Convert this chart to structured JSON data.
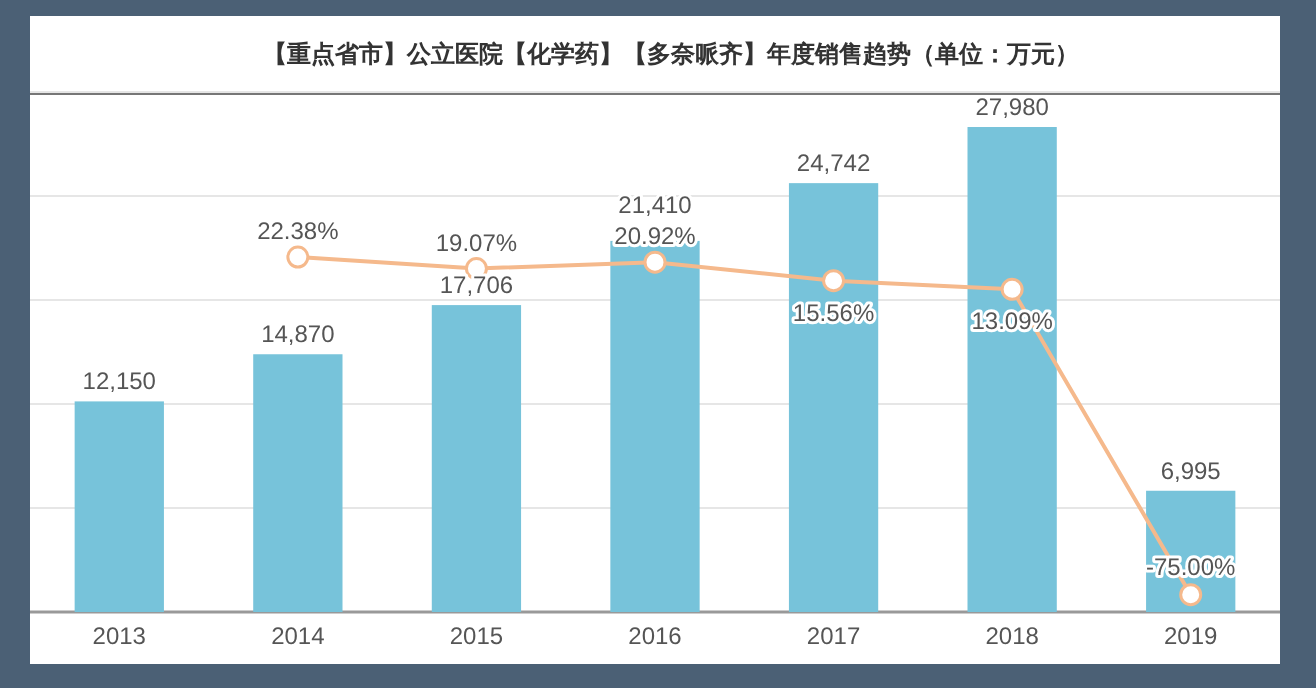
{
  "chart_data": {
    "type": "bar",
    "title": "【重点省市】公立医院【化学药】【多奈哌齐】年度销售趋势（单位：万元）",
    "categories": [
      "2013",
      "2014",
      "2015",
      "2016",
      "2017",
      "2018",
      "2019"
    ],
    "ylim": [
      0,
      30000
    ],
    "yticks": [
      {
        "value": 0,
        "label": null
      },
      {
        "value": 6000,
        "label": null
      },
      {
        "value": 12000,
        "label": null
      },
      {
        "value": 18000,
        "label": null
      },
      {
        "value": 24000,
        "label": null
      },
      {
        "value": 30000,
        "label": null
      }
    ],
    "y2lim": [
      -80,
      70
    ],
    "grid": "y",
    "series": [
      {
        "color": "#77c3da",
        "values": [
          12150,
          14870,
          17706,
          21410,
          24742,
          27980,
          6995
        ],
        "value_labels": [
          "12,150",
          "14,870",
          "17,706",
          "21,410",
          "24,742",
          "27,980",
          "6,995"
        ]
      },
      {
        "type": "line",
        "axis": "y2",
        "color": "#f5b98c",
        "marker": "circle",
        "values": [
          null,
          22.38,
          19.07,
          20.92,
          15.56,
          13.09,
          -75.0
        ],
        "value_labels": [
          null,
          "22.38%",
          "19.07%",
          "20.92%",
          "15.56%",
          "13.09%",
          "-75.00%"
        ]
      }
    ]
  }
}
